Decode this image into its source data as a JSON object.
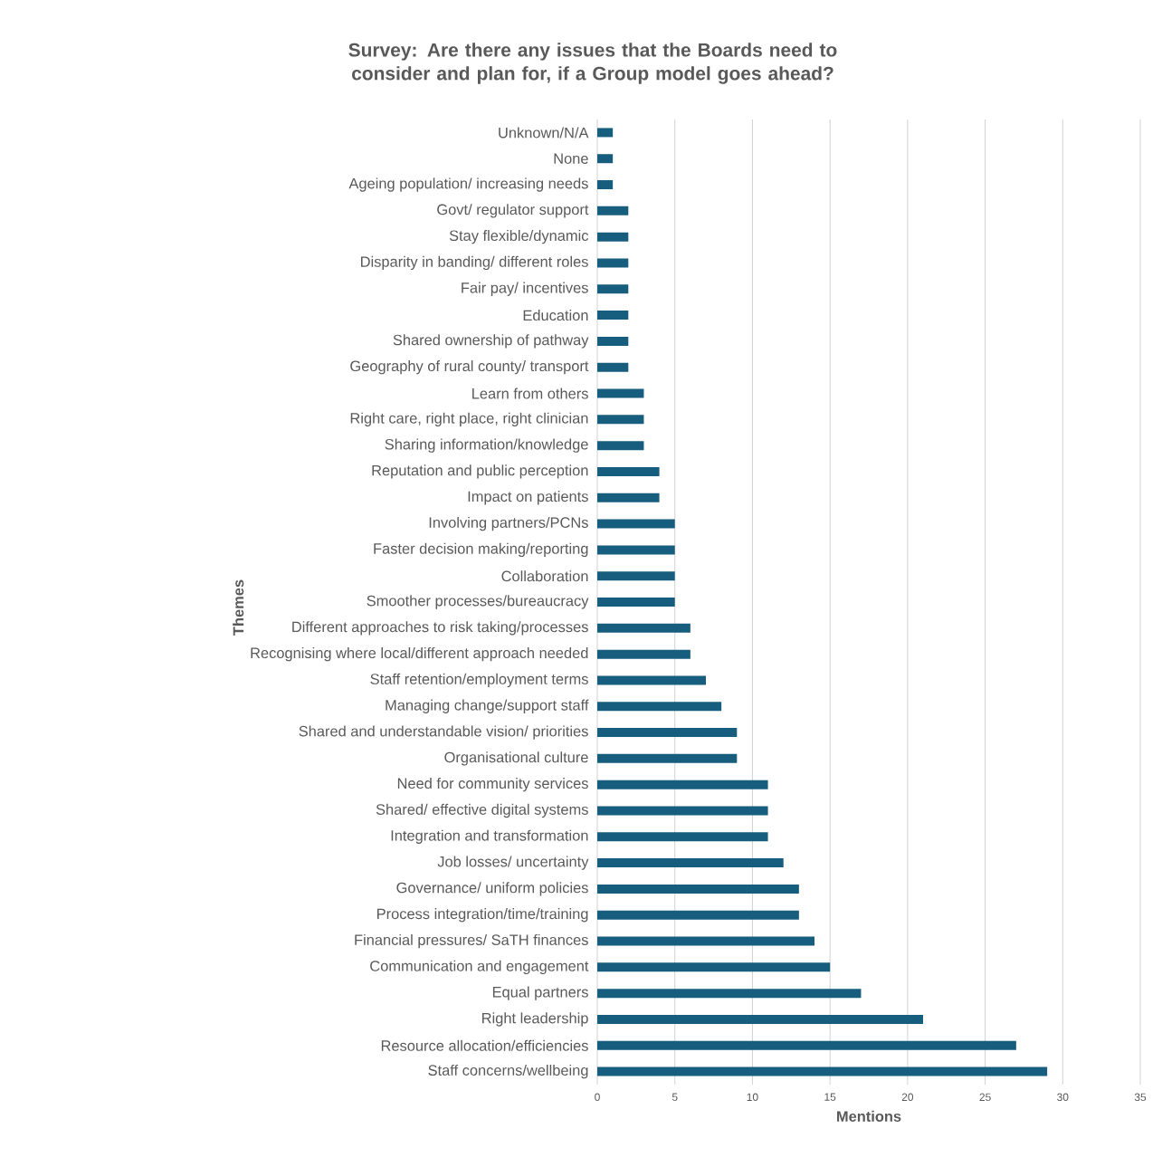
{
  "chart_data": {
    "type": "bar",
    "orientation": "horizontal",
    "title": "Survey: Are there any issues that the Boards need to consider and plan for, if a Group model goes ahead?",
    "xlabel": "Mentions",
    "ylabel": "Themes",
    "categories": [
      "Unknown/N/A",
      "None",
      "Ageing population/ increasing needs",
      "Govt/ regulator support",
      "Stay flexible/dynamic",
      "Disparity in banding/ different roles",
      "Fair pay/ incentives",
      "Education",
      "Shared ownership of pathway",
      "Geography of rural county/ transport",
      "Learn from others",
      "Right care, right place, right clinician",
      "Sharing information/knowledge",
      "Reputation and public perception",
      "Impact on patients",
      "Involving partners/PCNs",
      "Faster decision making/reporting",
      "Collaboration",
      "Smoother processes/bureaucracy",
      "Different approaches to risk taking/processes",
      "Recognising where local/different approach needed",
      "Staff retention/employment terms",
      "Managing change/support staff",
      "Shared and understandable vision/ priorities",
      "Organisational culture",
      "Need for community services",
      "Shared/ effective digital systems",
      "Integration and transformation",
      "Job losses/ uncertainty",
      "Governance/ uniform policies",
      "Process integration/time/training",
      "Financial pressures/ SaTH finances",
      "Communication and engagement",
      "Equal partners",
      "Right leadership",
      "Resource allocation/efficiencies",
      "Staff concerns/wellbeing"
    ],
    "values": [
      1,
      1,
      1,
      2,
      2,
      2,
      2,
      2,
      2,
      2,
      3,
      3,
      3,
      4,
      4,
      5,
      5,
      5,
      5,
      6,
      6,
      7,
      8,
      9,
      9,
      11,
      11,
      11,
      12,
      13,
      13,
      14,
      15,
      17,
      21,
      27,
      29
    ],
    "color": "#175e7e",
    "xlim": [
      0,
      35
    ],
    "xticks": [
      0,
      5,
      10,
      15,
      20,
      25,
      30,
      35
    ],
    "grid": "x"
  }
}
